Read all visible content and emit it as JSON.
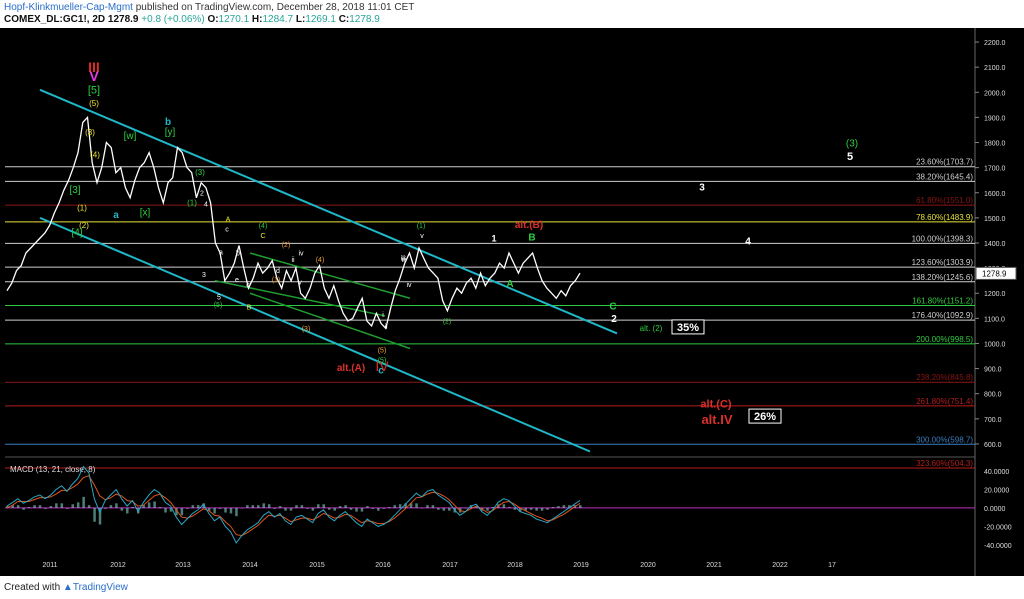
{
  "header": {
    "author": "Hopf-Klinkmueller-Cap-Mgmt",
    "published": "published on TradingView.com, December 28, 2018 11:01 CET",
    "symbol": "COMEX_DL:GC1!, 2D",
    "last": "1278.9",
    "change": "+0.8 (+0.06%)",
    "ohlc_labels": [
      "O:",
      "H:",
      "L:",
      "C:"
    ],
    "ohlc_values": [
      "1270.1",
      "1284.7",
      "1269.1",
      "1278.9"
    ]
  },
  "footer": {
    "created_with": "Created with",
    "brand": "TradingView"
  },
  "colors": {
    "background": "#000000",
    "price": "#ffffff",
    "channel": "#1fb8c8",
    "green": "#2ecc40",
    "red": "#d9302b",
    "yellow": "#f2e530",
    "orange": "#f0a030",
    "magenta": "#e23de2",
    "macd": "#29a6c4",
    "signal": "#e0551c",
    "hist": "#7fd3c9"
  },
  "chart_data": [
    {
      "type": "line",
      "title": "",
      "x_ticks": [
        "2011",
        "2012",
        "2013",
        "2014",
        "2015",
        "2016",
        "2017",
        "2018",
        "2019",
        "2020",
        "2021",
        "2022",
        "17"
      ],
      "y_ticks": [
        "2200.0",
        "2100.0",
        "2000.0",
        "1900.0",
        "1800.0",
        "1700.0",
        "1600.0",
        "1500.0",
        "1400.0",
        "1300.0",
        "1200.0",
        "1100.0",
        "1000.0",
        "900.0",
        "800.0",
        "700.0",
        "600.0"
      ],
      "ylim": [
        560,
        2240
      ],
      "last_price_label": "1278.9",
      "series": [
        {
          "values": [
            1210,
            1240,
            1290,
            1310,
            1360,
            1380,
            1400,
            1420,
            1440,
            1470,
            1520,
            1560,
            1610,
            1650,
            1700,
            1760,
            1880,
            1900,
            1720,
            1640,
            1700,
            1800,
            1780,
            1680,
            1700,
            1620,
            1580,
            1650,
            1700,
            1720,
            1760,
            1700,
            1620,
            1560,
            1640,
            1660,
            1780,
            1760,
            1700,
            1680,
            1580,
            1640,
            1620,
            1560,
            1400,
            1360,
            1250,
            1280,
            1320,
            1390,
            1300,
            1220,
            1260,
            1320,
            1280,
            1300,
            1330,
            1260,
            1220,
            1290,
            1250,
            1300,
            1200,
            1180,
            1220,
            1280,
            1310,
            1220,
            1180,
            1230,
            1170,
            1120,
            1090,
            1100,
            1140,
            1180,
            1090,
            1070,
            1120,
            1080,
            1060,
            1140,
            1210,
            1260,
            1320,
            1360,
            1300,
            1380,
            1340,
            1300,
            1280,
            1260,
            1170,
            1130,
            1180,
            1220,
            1200,
            1240,
            1260,
            1220,
            1280,
            1230,
            1260,
            1280,
            1320,
            1300,
            1360,
            1320,
            1280,
            1320,
            1340,
            1360,
            1300,
            1250,
            1220,
            1200,
            1180,
            1210,
            1190,
            1230,
            1250,
            1280
          ]
        }
      ]
    },
    {
      "type": "line",
      "title": "MACD (13, 21, close, 8)",
      "y_ticks": [
        "40.0000",
        "20.0000",
        "0.0000",
        "-20.0000",
        "-40.0000"
      ],
      "ylim": [
        -50,
        52
      ],
      "series": [
        {
          "name": "MACD",
          "values": [
            2,
            6,
            10,
            5,
            8,
            12,
            14,
            10,
            14,
            20,
            24,
            18,
            26,
            32,
            45,
            38,
            10,
            -5,
            8,
            14,
            20,
            10,
            2,
            8,
            -4,
            6,
            14,
            20,
            16,
            6,
            2,
            -10,
            -18,
            -12,
            -6,
            -2,
            4,
            -6,
            -14,
            -10,
            -20,
            -26,
            -38,
            -30,
            -24,
            -20,
            -16,
            -8,
            -4,
            -10,
            -6,
            -14,
            -18,
            -10,
            -8,
            -12,
            -16,
            -6,
            -2,
            -10,
            -14,
            -8,
            -4,
            -10,
            -16,
            -20,
            -12,
            -16,
            -20,
            -18,
            -14,
            -8,
            -2,
            4,
            10,
            16,
            12,
            18,
            20,
            14,
            10,
            6,
            -2,
            -8,
            -4,
            2,
            4,
            -4,
            -8,
            -2,
            6,
            10,
            8,
            2,
            -4,
            -6,
            -8,
            -12,
            -14,
            -16,
            -12,
            -8,
            -4,
            0,
            4,
            8
          ]
        },
        {
          "name": "Signal",
          "values": [
            0,
            3,
            7,
            7,
            7,
            9,
            11,
            11,
            12,
            15,
            19,
            19,
            22,
            26,
            33,
            35,
            25,
            13,
            9,
            11,
            15,
            13,
            8,
            7,
            2,
            3,
            8,
            13,
            15,
            11,
            6,
            -2,
            -10,
            -11,
            -9,
            -5,
            -1,
            -3,
            -8,
            -9,
            -15,
            -20,
            -29,
            -30,
            -27,
            -23,
            -19,
            -13,
            -8,
            -9,
            -8,
            -11,
            -15,
            -13,
            -11,
            -11,
            -13,
            -10,
            -6,
            -8,
            -11,
            -10,
            -7,
            -8,
            -12,
            -16,
            -14,
            -15,
            -17,
            -17,
            -15,
            -11,
            -6,
            -1,
            5,
            11,
            12,
            15,
            17,
            16,
            13,
            9,
            3,
            -3,
            -4,
            -1,
            2,
            -1,
            -5,
            -3,
            2,
            6,
            7,
            4,
            0,
            -3,
            -6,
            -9,
            -11,
            -14,
            -13,
            -10,
            -7,
            -3,
            1,
            5
          ]
        }
      ]
    }
  ],
  "fib_levels": [
    {
      "label": "23.60%(1703.7)",
      "price": 1703.7,
      "color": "#cfcfcf"
    },
    {
      "label": "38.20%(1645.4)",
      "price": 1645.4,
      "color": "#cfcfcf"
    },
    {
      "label": "61.80%(1551.0)",
      "price": 1551.0,
      "color": "#8a1414"
    },
    {
      "label": "78.60%(1483.9)",
      "price": 1483.9,
      "color": "#e8e23a"
    },
    {
      "label": "100.00%(1398.3)",
      "price": 1398.3,
      "color": "#cfcfcf"
    },
    {
      "label": "123.60%(1303.9)",
      "price": 1303.9,
      "color": "#cfcfcf"
    },
    {
      "label": "138.20%(1245.6)",
      "price": 1245.6,
      "color": "#cfcfcf"
    },
    {
      "label": "161.80%(1151.2)",
      "price": 1151.2,
      "color": "#2ecc40"
    },
    {
      "label": "176.40%(1092.9)",
      "price": 1092.9,
      "color": "#cfcfcf"
    },
    {
      "label": "200.00%(998.5)",
      "price": 998.5,
      "color": "#2ecc40"
    },
    {
      "label": "238.20%(845.8)",
      "price": 845.8,
      "color": "#8a1414"
    },
    {
      "label": "261.80%(751.4)",
      "price": 751.4,
      "color": "#b51c1c"
    },
    {
      "label": "300.00%(598.7)",
      "price": 598.7,
      "color": "#3a7fc0"
    },
    {
      "label": "323.60%(504.3)",
      "price": 504.3,
      "color": "#b51c1c"
    }
  ],
  "wave_labels": [
    {
      "text": "III",
      "color": "#d9302b"
    },
    {
      "text": "V",
      "color": "#e23de2"
    },
    {
      "text": "[5]",
      "color": "#2ecc40"
    },
    {
      "text": "(5)",
      "color": "#f2e530"
    },
    {
      "text": "(3)",
      "color": "#f2e530"
    },
    {
      "text": "(4)",
      "color": "#f2e530"
    },
    {
      "text": "[w]",
      "color": "#2ecc40"
    },
    {
      "text": "b",
      "color": "#1fb8c8"
    },
    {
      "text": "[y]",
      "color": "#2ecc40"
    },
    {
      "text": "[3]",
      "color": "#2ecc40"
    },
    {
      "text": "(1)",
      "color": "#f2e530"
    },
    {
      "text": "(2)",
      "color": "#f2e530"
    },
    {
      "text": "[4]",
      "color": "#2ecc40"
    },
    {
      "text": "a",
      "color": "#1fb8c8"
    },
    {
      "text": "[x]",
      "color": "#2ecc40"
    },
    {
      "text": "(3)",
      "color": "#2ecc40"
    },
    {
      "text": "2",
      "color": "#ffffff"
    },
    {
      "text": "(1)",
      "color": "#2ecc40"
    },
    {
      "text": "4",
      "color": "#ffffff"
    },
    {
      "text": "A",
      "color": "#f2e530"
    },
    {
      "text": "c",
      "color": "#ffffff"
    },
    {
      "text": "C",
      "color": "#f2e530"
    },
    {
      "text": "(4)",
      "color": "#2ecc40"
    },
    {
      "text": "(2)",
      "color": "#f0a030"
    },
    {
      "text": "ii",
      "color": "#ffffff"
    },
    {
      "text": "(4)",
      "color": "#f0a030"
    },
    {
      "text": "a",
      "color": "#ffffff"
    },
    {
      "text": "b",
      "color": "#ffffff"
    },
    {
      "text": "3",
      "color": "#ffffff"
    },
    {
      "text": "iv",
      "color": "#ffffff"
    },
    {
      "text": "(1)",
      "color": "#f0a030"
    },
    {
      "text": "c",
      "color": "#ffffff"
    },
    {
      "text": "e",
      "color": "#ffffff"
    },
    {
      "text": "5",
      "color": "#ffffff"
    },
    {
      "text": "(5)",
      "color": "#2ecc40"
    },
    {
      "text": "B",
      "color": "#f2e530"
    },
    {
      "text": "d",
      "color": "#ffffff"
    },
    {
      "text": "iii",
      "color": "#ffffff"
    },
    {
      "text": "v",
      "color": "#ffffff"
    },
    {
      "text": "(3)",
      "color": "#f0a030"
    },
    {
      "text": "i",
      "color": "#ffffff"
    },
    {
      "text": "ii",
      "color": "#ffffff"
    },
    {
      "text": "(5)",
      "color": "#f0a030"
    },
    {
      "text": "(5)",
      "color": "#2ecc40"
    },
    {
      "text": "c",
      "color": "#1fb8c8"
    },
    {
      "text": "(1)",
      "color": "#2ecc40"
    },
    {
      "text": "v",
      "color": "#ffffff"
    },
    {
      "text": "iii",
      "color": "#ffffff"
    },
    {
      "text": "iv",
      "color": "#ffffff"
    },
    {
      "text": "(2)",
      "color": "#2ecc40"
    },
    {
      "text": "1",
      "color": "#ffffff"
    },
    {
      "text": "alt.(B)",
      "color": "#d9302b"
    },
    {
      "text": "B",
      "color": "#2ecc40"
    },
    {
      "text": "A",
      "color": "#2ecc40"
    },
    {
      "text": "C",
      "color": "#2ecc40"
    },
    {
      "text": "2",
      "color": "#ffffff"
    },
    {
      "text": "alt. (2)",
      "color": "#2ecc40"
    },
    {
      "text": "3",
      "color": "#ffffff"
    },
    {
      "text": "4",
      "color": "#ffffff"
    },
    {
      "text": "(3)",
      "color": "#2ecc40"
    },
    {
      "text": "5",
      "color": "#ffffff"
    },
    {
      "text": "alt.(A)",
      "color": "#d9302b"
    },
    {
      "text": "IV",
      "color": "#d9302b"
    },
    {
      "text": "alt.(C)",
      "color": "#d9302b"
    },
    {
      "text": "alt.IV",
      "color": "#d9302b"
    }
  ],
  "boxes": [
    {
      "text": "35%",
      "color": "#ffffff"
    },
    {
      "text": "26%",
      "color": "#ffffff"
    }
  ]
}
